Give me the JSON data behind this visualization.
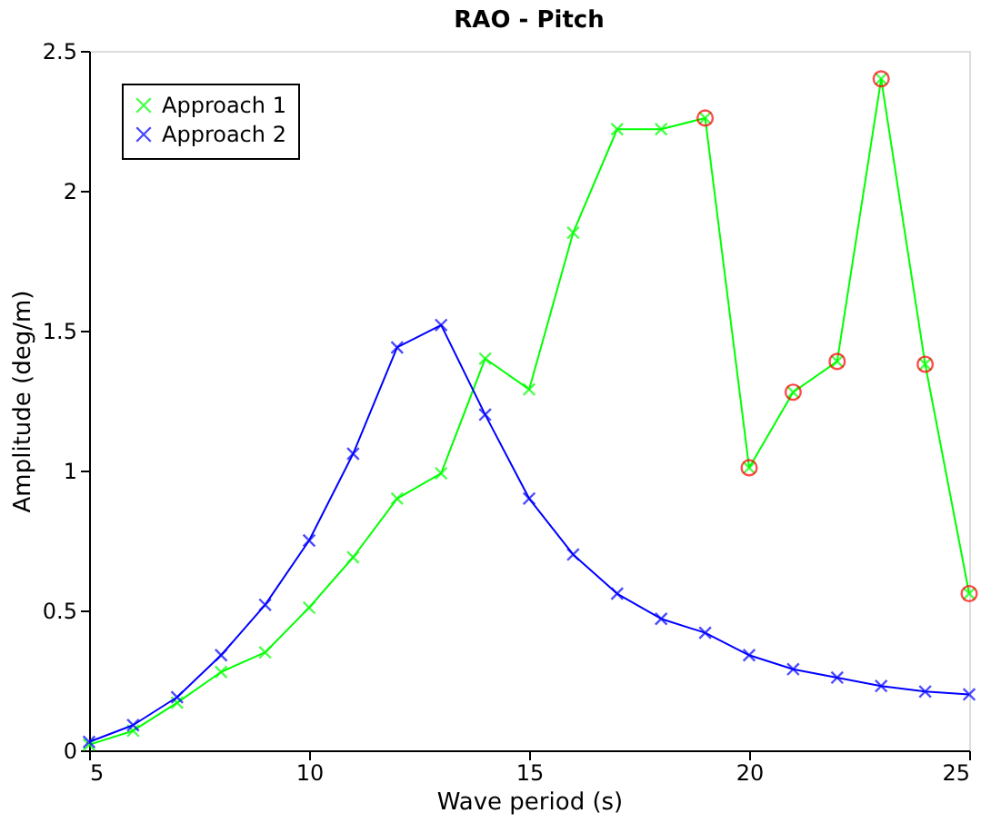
{
  "chart_data": {
    "type": "line",
    "title": "RAO - Pitch",
    "xlabel": "Wave period (s)",
    "ylabel": "Amplitude (deg/m)",
    "x": [
      5,
      6,
      7,
      8,
      9,
      10,
      11,
      12,
      13,
      14,
      15,
      16,
      17,
      18,
      19,
      20,
      21,
      22,
      23,
      24,
      25
    ],
    "series": [
      {
        "name": "Approach 1",
        "color": "#00ff00",
        "values": [
          0.02,
          0.07,
          0.17,
          0.28,
          0.35,
          0.51,
          0.69,
          0.9,
          0.99,
          1.4,
          1.29,
          1.85,
          2.22,
          2.22,
          2.26,
          1.01,
          1.28,
          1.39,
          2.4,
          1.38,
          0.56
        ]
      },
      {
        "name": "Approach 2",
        "color": "#0000ff",
        "values": [
          0.03,
          0.09,
          0.19,
          0.34,
          0.52,
          0.75,
          1.06,
          1.44,
          1.52,
          1.2,
          0.9,
          0.7,
          0.56,
          0.47,
          0.42,
          0.34,
          0.29,
          0.26,
          0.23,
          0.21,
          0.2
        ]
      },
      {
        "type": "scatter",
        "marker": "circle",
        "color": "#ff0000",
        "x": [
          19,
          20,
          21,
          22,
          23,
          24,
          25
        ],
        "values": [
          2.26,
          1.01,
          1.28,
          1.39,
          2.4,
          1.38,
          0.56
        ]
      }
    ],
    "xlim": [
      5,
      25
    ],
    "ylim": [
      0,
      2.5
    ],
    "xticks": [
      5,
      10,
      15,
      20,
      25
    ],
    "yticks": [
      0,
      0.5,
      1,
      1.5,
      2,
      2.5
    ],
    "legend": "top left",
    "grid": false,
    "marker": "cross",
    "line_style": "solid"
  }
}
